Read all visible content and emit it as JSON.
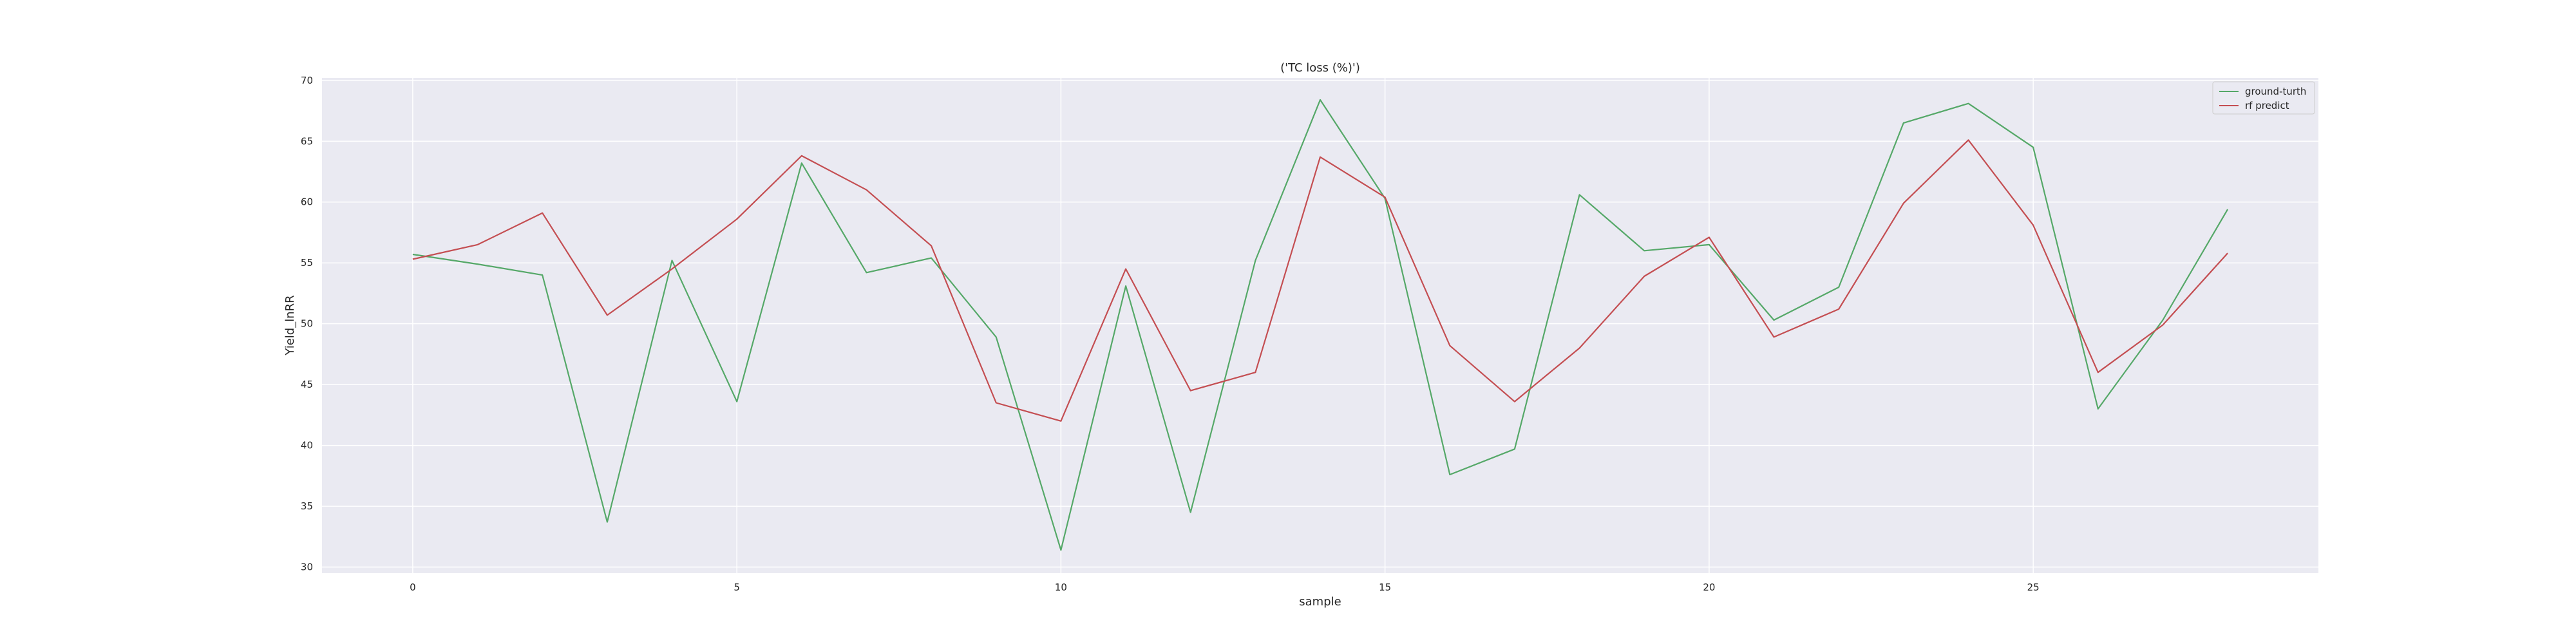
{
  "chart_data": {
    "type": "line",
    "title": "('TC loss (%)')",
    "xlabel": "sample",
    "ylabel": "Yield_lnRR",
    "xlim": [
      -1.4,
      29.4
    ],
    "ylim": [
      29.5,
      70.2
    ],
    "xticks": [
      0,
      5,
      10,
      15,
      20,
      25
    ],
    "yticks": [
      30,
      35,
      40,
      45,
      50,
      55,
      60,
      65,
      70
    ],
    "grid": true,
    "legend_position": "top-right",
    "x": [
      0,
      1,
      2,
      3,
      4,
      5,
      6,
      7,
      8,
      9,
      10,
      11,
      12,
      13,
      14,
      15,
      16,
      17,
      18,
      19,
      20,
      21,
      22,
      23,
      24,
      25,
      26,
      27,
      28
    ],
    "series": [
      {
        "name": "ground-turth",
        "color": "#55a868",
        "values": [
          55.7,
          54.9,
          54.0,
          33.7,
          55.2,
          43.6,
          63.2,
          54.2,
          55.4,
          48.9,
          31.4,
          53.1,
          34.5,
          55.2,
          68.4,
          60.3,
          37.6,
          39.7,
          60.6,
          56.0,
          56.5,
          50.3,
          53.0,
          66.5,
          68.1,
          64.5,
          43.0,
          50.3,
          59.4
        ]
      },
      {
        "name": "rf predict",
        "color": "#c44e52",
        "values": [
          55.3,
          56.5,
          59.1,
          50.7,
          54.5,
          58.6,
          63.8,
          61.0,
          56.4,
          43.5,
          42.0,
          54.5,
          44.5,
          46.0,
          63.7,
          60.4,
          48.2,
          43.6,
          48.0,
          53.9,
          57.1,
          48.9,
          51.2,
          59.9,
          65.1,
          58.1,
          46.0,
          49.9,
          55.8
        ]
      }
    ],
    "plot_background": "#eaeaf2",
    "grid_color": "#ffffff"
  }
}
